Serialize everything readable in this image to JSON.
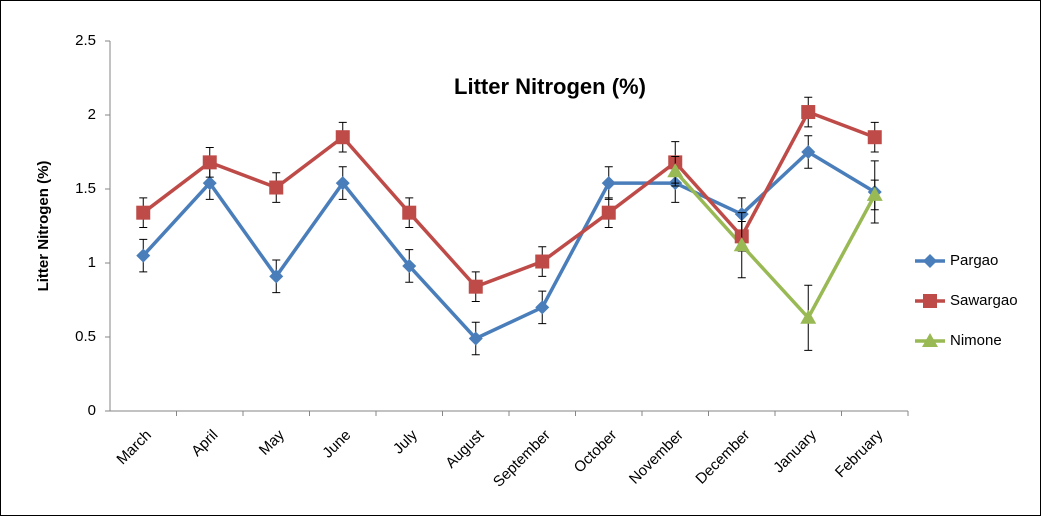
{
  "chart_data": {
    "type": "line",
    "title": "Litter Nitrogen (%)",
    "y_label": "Litter  Nitrogen (%)",
    "categories": [
      "March",
      "April",
      "May",
      "June",
      "July",
      "August",
      "September",
      "October",
      "November",
      "December",
      "January",
      "February"
    ],
    "series": [
      {
        "name": "Pargao",
        "color": "#4a7ebb",
        "marker": "diamond",
        "values": [
          1.05,
          1.54,
          0.91,
          1.54,
          0.98,
          0.49,
          0.7,
          1.54,
          1.54,
          1.33,
          1.75,
          1.48
        ],
        "errors": [
          0.11,
          0.11,
          0.11,
          0.11,
          0.11,
          0.11,
          0.11,
          0.11,
          0.13,
          0.11,
          0.11,
          0.21
        ]
      },
      {
        "name": "Sawargao",
        "color": "#be4b48",
        "marker": "square",
        "values": [
          1.34,
          1.68,
          1.51,
          1.85,
          1.34,
          0.84,
          1.01,
          1.34,
          1.68,
          1.18,
          2.02,
          1.85
        ],
        "errors": [
          0.1,
          0.1,
          0.1,
          0.1,
          0.1,
          0.1,
          0.1,
          0.1,
          0.14,
          0.1,
          0.1,
          0.1
        ]
      },
      {
        "name": "Nimone",
        "color": "#98b954",
        "marker": "triangle",
        "values": [
          null,
          null,
          null,
          null,
          null,
          null,
          null,
          null,
          1.62,
          1.12,
          0.63,
          1.46
        ],
        "errors": [
          null,
          null,
          null,
          null,
          null,
          null,
          null,
          null,
          0.1,
          0.22,
          0.22,
          0.1
        ]
      }
    ],
    "ylim": [
      0,
      2.5
    ],
    "yticks": [
      0,
      0.5,
      1,
      1.5,
      2,
      2.5
    ],
    "grid": false,
    "legend": "right"
  }
}
